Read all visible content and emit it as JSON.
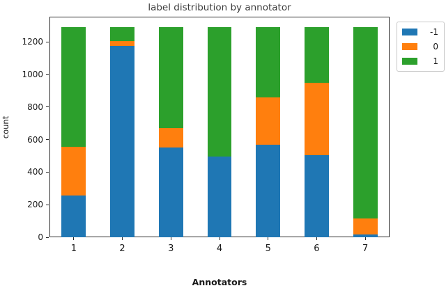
{
  "chart_data": {
    "type": "bar",
    "stacked": true,
    "title": "label distribution by annotator",
    "xlabel": "Annotators",
    "ylabel": "count",
    "categories": [
      "1",
      "2",
      "3",
      "4",
      "5",
      "6",
      "7"
    ],
    "series": [
      {
        "name": "-1",
        "color": "#1f77b4",
        "values": [
          255,
          1175,
          550,
          495,
          570,
          505,
          15
        ]
      },
      {
        "name": "0",
        "color": "#ff7f0e",
        "values": [
          300,
          30,
          120,
          0,
          290,
          445,
          100
        ]
      },
      {
        "name": "1",
        "color": "#2ca02c",
        "values": [
          735,
          85,
          620,
          795,
          430,
          340,
          1175
        ]
      }
    ],
    "totals_per_bar": [
      1290,
      1290,
      1290,
      1290,
      1290,
      1290,
      1290
    ],
    "ylim": [
      0,
      1356
    ],
    "yticks": [
      0,
      200,
      400,
      600,
      800,
      1000,
      1200
    ],
    "grid": false,
    "legend_position": "upper right outside",
    "bar_width_fraction": 0.5,
    "spine_color": "#2a2a2a"
  }
}
